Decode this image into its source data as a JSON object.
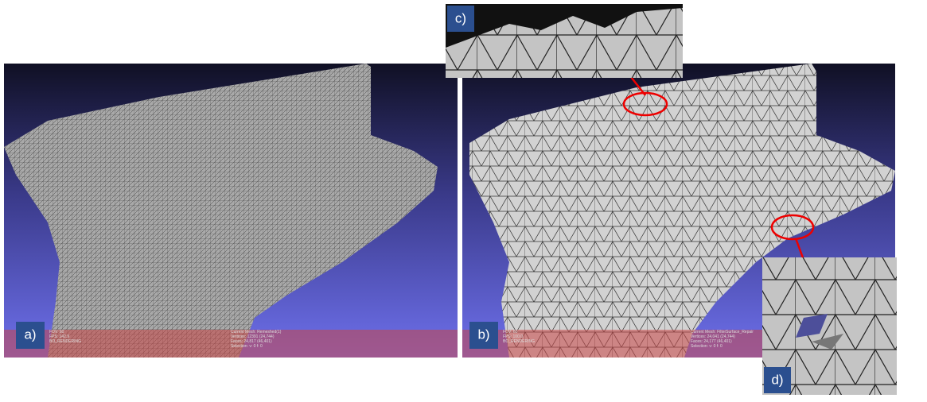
{
  "panels": [
    {
      "label": "a)",
      "info_left": [
        "FOV: 60",
        "FPS: 142.9",
        "BO_RENDERING"
      ],
      "info_right": [
        "Current Mesh: Remeshed(1)",
        "Vertices: 12391 (24,744)",
        "Faces: 24,817 (46,401)",
        "Selection: v: 0 f: 0"
      ]
    },
    {
      "label": "b)",
      "info_left": [
        "FOV: 60",
        "FPS: 100.0",
        "BO_RENDERING"
      ],
      "info_right": [
        "Current Mesh: FilterSurface_Repair",
        "Vertices: 24,041 (24,744)",
        "Faces: 24,177 (46,401)",
        "Selection: v: 0 f: 0"
      ]
    }
  ],
  "insets": [
    {
      "label": "c)"
    },
    {
      "label": "d)"
    }
  ]
}
